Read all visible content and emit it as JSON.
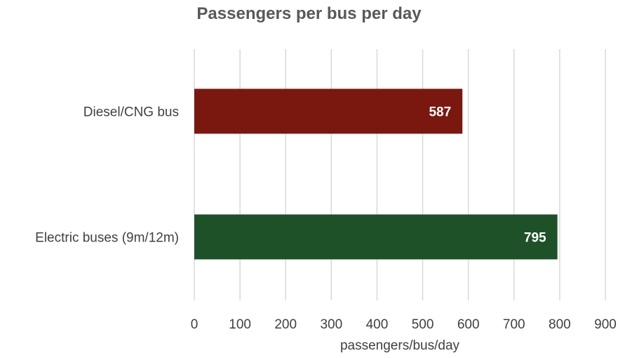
{
  "chart_data": {
    "type": "bar",
    "orientation": "horizontal",
    "title": "Passengers per bus per day",
    "xlabel": "passengers/bus/day",
    "ylabel": "",
    "categories": [
      "Diesel/CNG bus",
      "Electric buses (9m/12m)"
    ],
    "values": [
      587,
      795
    ],
    "colors": [
      "#7a1810",
      "#1e5128"
    ],
    "xlim": [
      0,
      900
    ],
    "ticks": [
      "0",
      "100",
      "200",
      "300",
      "400",
      "500",
      "600",
      "700",
      "800",
      "900"
    ],
    "grid": true,
    "data_labels": [
      "587",
      "795"
    ]
  }
}
